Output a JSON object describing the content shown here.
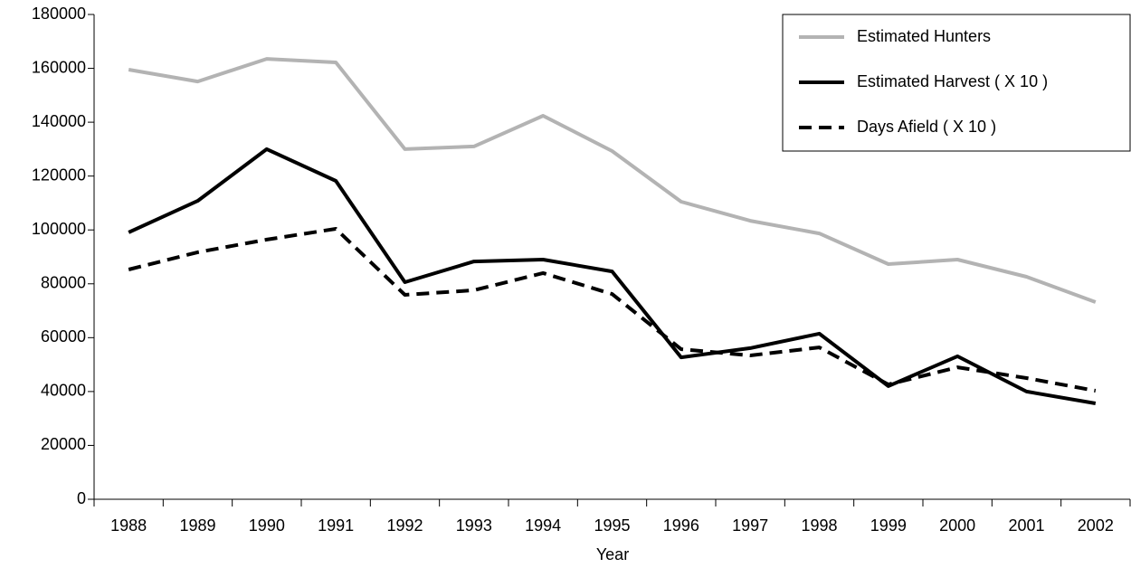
{
  "chart_data": {
    "type": "line",
    "x_label": "Year",
    "categories": [
      "1988",
      "1989",
      "1990",
      "1991",
      "1992",
      "1993",
      "1994",
      "1995",
      "1996",
      "1997",
      "1998",
      "1999",
      "2000",
      "2001",
      "2002"
    ],
    "series": [
      {
        "name": "Estimated Hunters",
        "color": "#b3b3b3",
        "dashed": false,
        "values": [
          159500,
          155100,
          163500,
          162200,
          130000,
          131000,
          142400,
          129300,
          110500,
          103400,
          98700,
          87300,
          89000,
          82600,
          73200
        ]
      },
      {
        "name": "Estimated Harvest ( X 10 )",
        "color": "#000000",
        "dashed": false,
        "values": [
          99100,
          110800,
          130000,
          118200,
          80600,
          88300,
          89000,
          84600,
          52700,
          56100,
          61500,
          42000,
          53100,
          40000,
          35600
        ]
      },
      {
        "name": "Days Afield ( X 10 )",
        "color": "#000000",
        "dashed": true,
        "values": [
          85300,
          91700,
          96400,
          100400,
          75900,
          77600,
          84000,
          76200,
          55700,
          53400,
          56400,
          42600,
          49000,
          45000,
          40300
        ]
      }
    ],
    "ylim": [
      0,
      180000
    ],
    "yticks": [
      0,
      20000,
      40000,
      60000,
      80000,
      100000,
      120000,
      140000,
      160000,
      180000
    ],
    "legend": "top-right"
  }
}
